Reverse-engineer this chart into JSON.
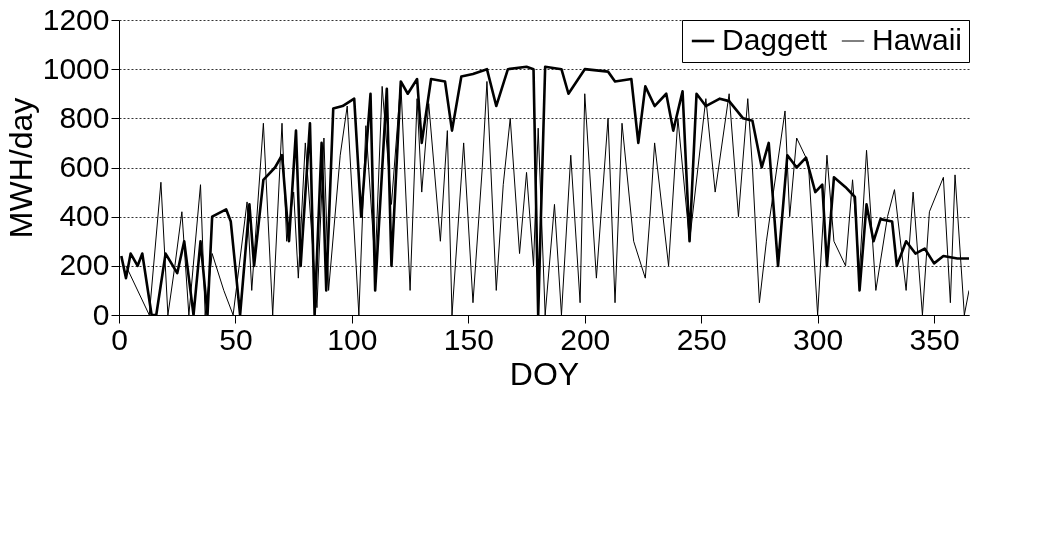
{
  "chart_data": {
    "type": "line",
    "xlabel": "DOY",
    "ylabel": "MWH/day",
    "xlim": [
      0,
      365
    ],
    "xticks": [
      0,
      50,
      100,
      150,
      200,
      250,
      300,
      350
    ],
    "ylim": [
      0,
      1200
    ],
    "yticks": [
      0,
      200,
      400,
      600,
      800,
      1000,
      1200
    ],
    "grid": "y",
    "legend": "top right",
    "series": [
      {
        "name": "Daggett",
        "color": "#000000",
        "x": [
          1,
          3,
          5,
          8,
          10,
          14,
          16,
          20,
          25,
          28,
          32,
          35,
          38,
          40,
          46,
          48,
          52,
          56,
          58,
          62,
          67,
          70,
          73,
          76,
          78,
          82,
          84,
          87,
          89,
          92,
          96,
          101,
          104,
          108,
          110,
          115,
          117,
          121,
          124,
          128,
          130,
          134,
          140,
          143,
          147,
          152,
          158,
          162,
          167,
          175,
          178,
          180,
          183,
          190,
          193,
          200,
          210,
          213,
          220,
          223,
          226,
          230,
          235,
          238,
          242,
          245,
          248,
          252,
          258,
          262,
          268,
          272,
          276,
          279,
          283,
          287,
          291,
          295,
          299,
          302,
          304,
          307,
          312,
          316,
          318,
          321,
          324,
          327,
          332,
          334,
          338,
          342,
          346,
          350,
          354,
          360,
          365
        ],
        "values": [
          240,
          150,
          250,
          200,
          250,
          0,
          0,
          250,
          170,
          300,
          0,
          300,
          0,
          400,
          430,
          380,
          0,
          450,
          200,
          550,
          600,
          650,
          300,
          750,
          200,
          780,
          0,
          700,
          100,
          840,
          850,
          880,
          400,
          900,
          100,
          920,
          200,
          950,
          900,
          960,
          700,
          960,
          950,
          750,
          970,
          980,
          1000,
          850,
          1000,
          1010,
          1000,
          0,
          1010,
          1000,
          900,
          1000,
          990,
          950,
          960,
          700,
          930,
          850,
          900,
          750,
          910,
          300,
          900,
          850,
          880,
          870,
          800,
          790,
          600,
          700,
          200,
          650,
          600,
          640,
          500,
          530,
          200,
          560,
          520,
          480,
          100,
          450,
          300,
          390,
          380,
          200,
          300,
          250,
          270,
          210,
          240,
          230,
          230
        ]
      },
      {
        "name": "Hawaii",
        "color": "#000000",
        "x": [
          3,
          13,
          18,
          21,
          24,
          27,
          30,
          35,
          37,
          40,
          45,
          49,
          55,
          57,
          62,
          66,
          70,
          72,
          75,
          77,
          80,
          85,
          88,
          90,
          95,
          98,
          103,
          106,
          110,
          113,
          117,
          121,
          125,
          128,
          130,
          133,
          138,
          141,
          143,
          148,
          152,
          156,
          158,
          162,
          165,
          168,
          172,
          175,
          178,
          180,
          183,
          187,
          190,
          194,
          198,
          200,
          205,
          210,
          213,
          216,
          221,
          226,
          228,
          230,
          236,
          240,
          245,
          252,
          256,
          262,
          266,
          270,
          272,
          275,
          278,
          286,
          288,
          291,
          296,
          300,
          304,
          307,
          312,
          315,
          318,
          321,
          325,
          330,
          333,
          338,
          341,
          345,
          348,
          354,
          357,
          359,
          363,
          365
        ],
        "values": [
          200,
          0,
          540,
          0,
          200,
          420,
          0,
          530,
          0,
          250,
          100,
          0,
          460,
          100,
          780,
          0,
          780,
          300,
          500,
          150,
          700,
          30,
          720,
          100,
          650,
          850,
          0,
          770,
          200,
          930,
          450,
          950,
          100,
          880,
          500,
          860,
          300,
          750,
          0,
          700,
          50,
          600,
          950,
          100,
          530,
          800,
          250,
          580,
          200,
          760,
          0,
          450,
          0,
          650,
          50,
          900,
          150,
          800,
          50,
          780,
          300,
          150,
          400,
          700,
          200,
          800,
          300,
          880,
          500,
          900,
          400,
          880,
          600,
          50,
          300,
          830,
          400,
          720,
          620,
          0,
          650,
          300,
          200,
          550,
          180,
          670,
          100,
          400,
          510,
          100,
          500,
          0,
          420,
          560,
          50,
          570,
          0,
          100
        ]
      }
    ]
  }
}
